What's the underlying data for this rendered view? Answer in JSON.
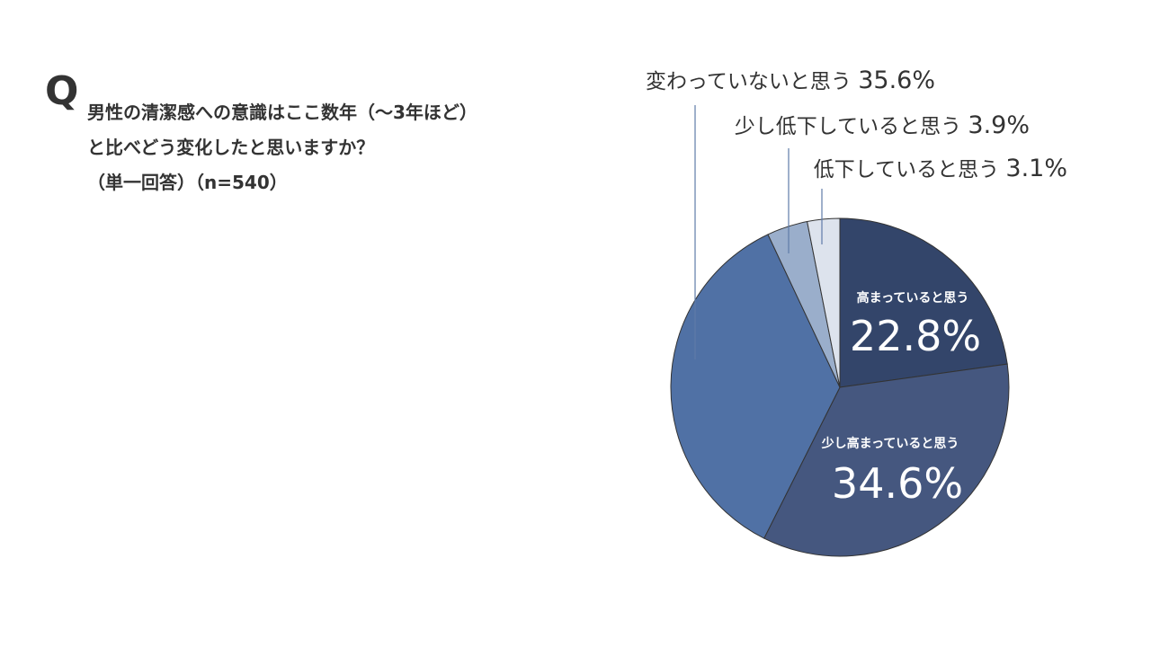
{
  "question": {
    "mark": "Q",
    "line1": "男性の清潔感への意識はここ数年（〜3年ほど）",
    "line2": "と比べどう変化したと思いますか？",
    "line3": "（単一回答）（n=540）"
  },
  "chart_data": {
    "type": "pie",
    "start_angle_deg": 0,
    "direction": "clockwise",
    "slices": [
      {
        "label": "高まっていると思う",
        "value": 22.8,
        "value_text": "22.8%",
        "color": "#33456a",
        "label_position": "inside"
      },
      {
        "label": "少し高まっていると思う",
        "value": 34.6,
        "value_text": "34.6%",
        "color": "#45577f",
        "label_position": "inside"
      },
      {
        "label": "変わっていないと思う",
        "value": 35.6,
        "value_text": "35.6%",
        "color": "#5071a5",
        "label_position": "outside"
      },
      {
        "label": "少し低下していると思う",
        "value": 3.9,
        "value_text": "3.9%",
        "color": "#9aaecb",
        "label_position": "outside"
      },
      {
        "label": "低下していると思う",
        "value": 3.1,
        "value_text": "3.1%",
        "color": "#dde3ed",
        "label_position": "outside"
      }
    ],
    "slice_border_color": "#333333",
    "leader_line_color": "#5f7ba8"
  }
}
